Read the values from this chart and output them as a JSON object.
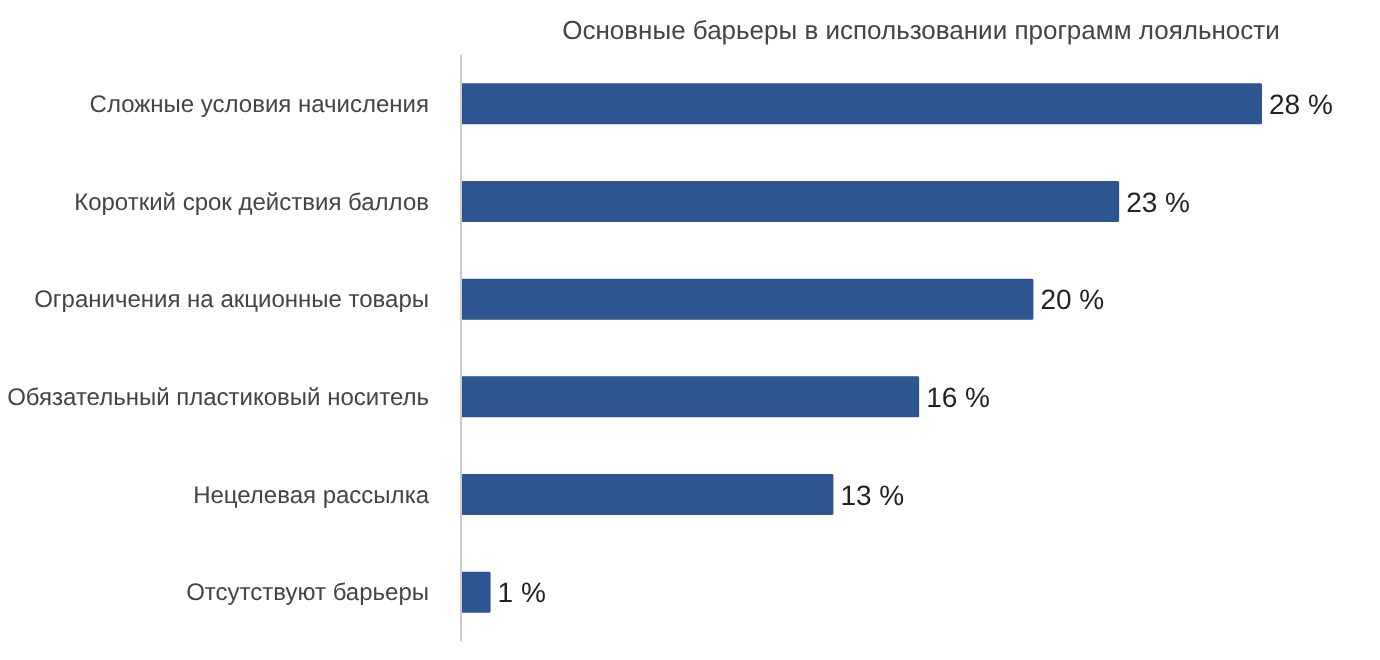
{
  "chart_data": {
    "type": "bar",
    "orientation": "horizontal",
    "title": "Основные барьеры в использовании программ лояльности",
    "categories": [
      "Сложные условия начисления",
      "Короткий срок действия баллов",
      "Ограничения на акционные товары",
      "Обязательный пластиковый носитель",
      "Нецелевая рассылка",
      "Отсутствуют барьеры"
    ],
    "values": [
      28,
      23,
      20,
      16,
      13,
      1
    ],
    "value_labels": [
      "28 %",
      "23 %",
      "20 %",
      "16 %",
      "13 %",
      "1 %"
    ],
    "color": "#2d5590",
    "tick_labels": "y"
  }
}
